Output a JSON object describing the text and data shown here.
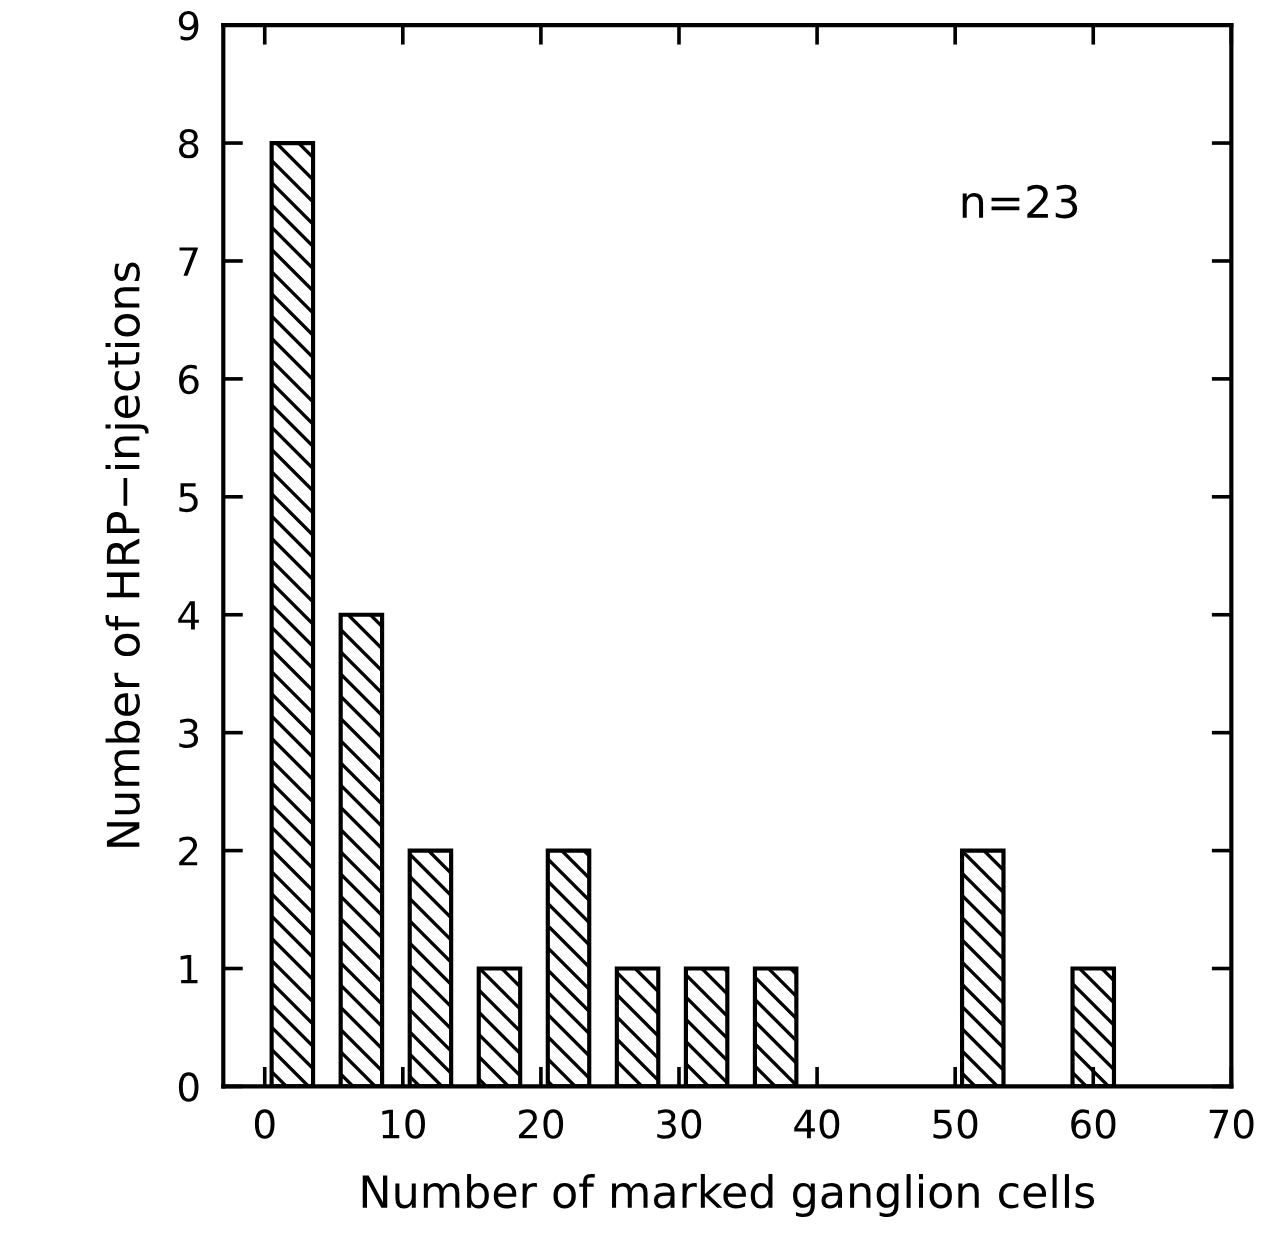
{
  "chart_data": {
    "type": "bar",
    "xlabel": "Number of marked ganglion cells",
    "ylabel": "Number of HRP−injections",
    "x": [
      2,
      7,
      12,
      17,
      22,
      27,
      32,
      37,
      52,
      60
    ],
    "values": [
      8,
      4,
      2,
      1,
      2,
      1,
      1,
      1,
      2,
      1
    ],
    "color": "#000000",
    "xlim": [
      -3,
      70
    ],
    "xticks": [
      0,
      10,
      20,
      30,
      40,
      50,
      60,
      70
    ],
    "ylim": [
      0,
      9
    ],
    "yticks": [
      0,
      1,
      2,
      3,
      4,
      5,
      6,
      7,
      8,
      9
    ],
    "grid": false,
    "legend": false,
    "annotations": [
      "n=23"
    ]
  }
}
